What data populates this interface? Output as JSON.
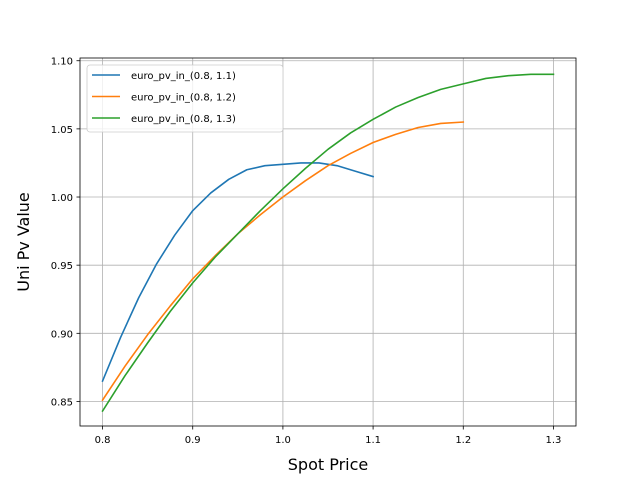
{
  "chart_data": {
    "type": "line",
    "title": "",
    "xlabel": "Spot Price",
    "ylabel": "Uni Pv Value",
    "xlim": [
      0.775,
      1.325
    ],
    "ylim": [
      0.832,
      1.102
    ],
    "xticks": [
      0.8,
      0.9,
      1.0,
      1.1,
      1.2,
      1.3
    ],
    "xtick_labels": [
      "0.8",
      "0.9",
      "1.0",
      "1.1",
      "1.2",
      "1.3"
    ],
    "yticks": [
      0.85,
      0.9,
      0.95,
      1.0,
      1.05,
      1.1
    ],
    "ytick_labels": [
      "0.85",
      "0.90",
      "0.95",
      "1.00",
      "1.05",
      "1.10"
    ],
    "grid": true,
    "legend_position": "top-left",
    "series": [
      {
        "name": "euro_pv_in_(0.8, 1.1)",
        "color": "#1f77b4",
        "x": [
          0.8,
          0.82,
          0.84,
          0.86,
          0.88,
          0.9,
          0.92,
          0.94,
          0.96,
          0.98,
          1.0,
          1.02,
          1.04,
          1.06,
          1.08,
          1.1
        ],
        "y": [
          0.865,
          0.897,
          0.926,
          0.951,
          0.972,
          0.99,
          1.003,
          1.013,
          1.02,
          1.023,
          1.024,
          1.025,
          1.025,
          1.023,
          1.019,
          1.015
        ]
      },
      {
        "name": "euro_pv_in_(0.8, 1.2)",
        "color": "#ff7f0e",
        "x": [
          0.8,
          0.825,
          0.85,
          0.875,
          0.9,
          0.925,
          0.95,
          0.975,
          1.0,
          1.025,
          1.05,
          1.075,
          1.1,
          1.125,
          1.15,
          1.175,
          1.2
        ],
        "y": [
          0.851,
          0.876,
          0.899,
          0.92,
          0.94,
          0.957,
          0.973,
          0.987,
          1.0,
          1.012,
          1.023,
          1.032,
          1.04,
          1.046,
          1.051,
          1.054,
          1.055
        ]
      },
      {
        "name": "euro_pv_in_(0.8, 1.3)",
        "color": "#2ca02c",
        "x": [
          0.8,
          0.825,
          0.85,
          0.875,
          0.9,
          0.925,
          0.95,
          0.975,
          1.0,
          1.025,
          1.05,
          1.075,
          1.1,
          1.125,
          1.15,
          1.175,
          1.2,
          1.225,
          1.25,
          1.275,
          1.3
        ],
        "y": [
          0.843,
          0.869,
          0.893,
          0.916,
          0.937,
          0.956,
          0.973,
          0.99,
          1.006,
          1.021,
          1.035,
          1.047,
          1.057,
          1.066,
          1.073,
          1.079,
          1.083,
          1.087,
          1.089,
          1.09,
          1.09
        ]
      }
    ]
  }
}
